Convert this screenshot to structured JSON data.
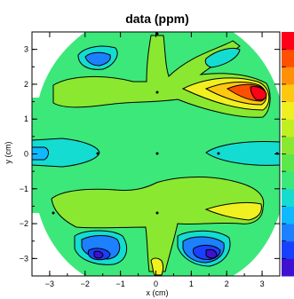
{
  "chart_data": {
    "type": "heatmap",
    "title": "data (ppm)",
    "xlabel": "x (cm)",
    "ylabel": "y (cm)",
    "xlim": [
      -3.5,
      3.5
    ],
    "ylim": [
      -3.5,
      3.5
    ],
    "x_ticks": [
      "−3",
      "−2",
      "−1",
      "0",
      "1",
      "2",
      "3"
    ],
    "y_ticks": [
      "−3",
      "−2",
      "−1",
      "0",
      "1",
      "2",
      "3"
    ],
    "colorbar": {
      "colors": [
        "#4010d0",
        "#1840ff",
        "#1c80ff",
        "#10b8ff",
        "#14dcd0",
        "#3ce87a",
        "#5ae84a",
        "#8ae830",
        "#c0f020",
        "#f0f020",
        "#ffc810",
        "#ff9008",
        "#ff5000",
        "#ff0018"
      ]
    },
    "colors": {
      "background": "#3ce87a",
      "canvas": "#ffffff"
    }
  }
}
